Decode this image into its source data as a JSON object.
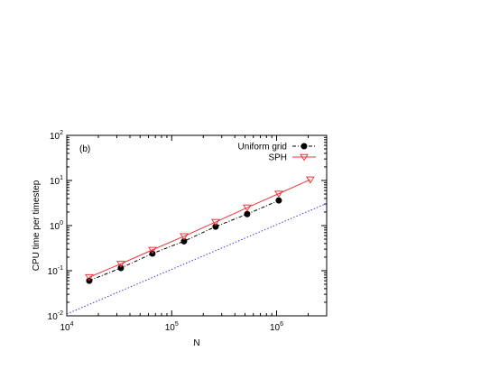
{
  "chart_data": {
    "type": "line",
    "x_scale": "log",
    "y_scale": "log",
    "xlim": [
      10000,
      3000000
    ],
    "ylim": [
      0.01,
      100
    ],
    "xlabel": "N",
    "ylabel": "CPU time per timestep",
    "panel_label": "(b)",
    "x_ticks": [
      {
        "value": 10000,
        "base": "10",
        "exp": "4"
      },
      {
        "value": 100000,
        "base": "10",
        "exp": "5"
      },
      {
        "value": 1000000,
        "base": "10",
        "exp": "6"
      }
    ],
    "y_ticks": [
      {
        "value": 0.01,
        "base": "10",
        "exp": "-2"
      },
      {
        "value": 0.1,
        "base": "10",
        "exp": "-1"
      },
      {
        "value": 1,
        "base": "10",
        "exp": "0"
      },
      {
        "value": 10,
        "base": "10",
        "exp": "1"
      },
      {
        "value": 100,
        "base": "10",
        "exp": "2"
      }
    ],
    "legend_position": "top-right",
    "series": [
      {
        "name": "Uniform grid",
        "marker": "filled-circle",
        "line_style": "dash-dot",
        "color": "#000000",
        "x": [
          16384,
          32768,
          65536,
          131072,
          262144,
          524288,
          1048576
        ],
        "y": [
          0.06,
          0.115,
          0.24,
          0.45,
          0.95,
          1.8,
          3.6
        ]
      },
      {
        "name": "SPH",
        "marker": "open-triangle-down",
        "line_style": "solid",
        "color": "#e8383d",
        "x": [
          16384,
          32768,
          65536,
          131072,
          262144,
          524288,
          1048576,
          2097152
        ],
        "y": [
          0.072,
          0.142,
          0.29,
          0.58,
          1.2,
          2.5,
          5.1,
          10.5
        ]
      },
      {
        "marker": "none",
        "line_style": "dotted",
        "color": "#3a3af0",
        "x": [
          10000,
          3000000
        ],
        "y": [
          0.011,
          3.1
        ]
      }
    ]
  }
}
